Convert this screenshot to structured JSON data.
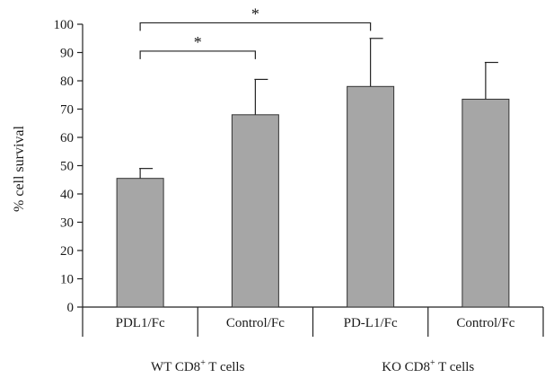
{
  "chart_data": {
    "type": "bar",
    "ylabel": "% cell survival",
    "ylim": [
      0,
      100
    ],
    "yticks": [
      0,
      10,
      20,
      30,
      40,
      50,
      60,
      70,
      80,
      90,
      100
    ],
    "grid": false,
    "categories": [
      "PDL1/Fc",
      "Control/Fc",
      "PD-L1/Fc",
      "Control/Fc"
    ],
    "values": [
      45.5,
      68,
      78,
      73.5
    ],
    "errors": [
      3.5,
      12.5,
      17,
      13
    ],
    "groups": [
      {
        "label": "WT CD8",
        "superscript": "+",
        "suffix": " T cells",
        "categories": [
          0,
          1
        ]
      },
      {
        "label": "KO CD8",
        "superscript": "+",
        "suffix": " T cells",
        "categories": [
          2,
          3
        ]
      }
    ],
    "significance": [
      {
        "from": 0,
        "to": 1,
        "label": "*"
      },
      {
        "from": 0,
        "to": 2,
        "label": "*"
      }
    ],
    "bar_color": "#a6a6a6",
    "edge_color": "#333333"
  }
}
